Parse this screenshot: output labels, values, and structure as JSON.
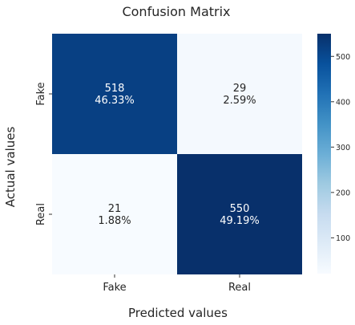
{
  "chart_data": {
    "type": "heatmap",
    "title": "Confusion Matrix",
    "xlabel": "Predicted values",
    "ylabel": "Actual values",
    "x_categories": [
      "Fake",
      "Real"
    ],
    "y_categories": [
      "Fake",
      "Real"
    ],
    "values": [
      [
        518,
        29
      ],
      [
        21,
        550
      ]
    ],
    "cell_labels": [
      [
        "518\n46.33%",
        "29\n2.59%"
      ],
      [
        "21\n1.88%",
        "550\n49.19%"
      ]
    ],
    "colormap": "Blues",
    "colorbar": {
      "range": [
        21,
        550
      ],
      "ticks": [
        100,
        200,
        300,
        400,
        500
      ]
    },
    "colors": {
      "low": "#f7fbff",
      "high": "#08306b",
      "text_light": "#ffffff",
      "text_dark": "#262626"
    }
  }
}
